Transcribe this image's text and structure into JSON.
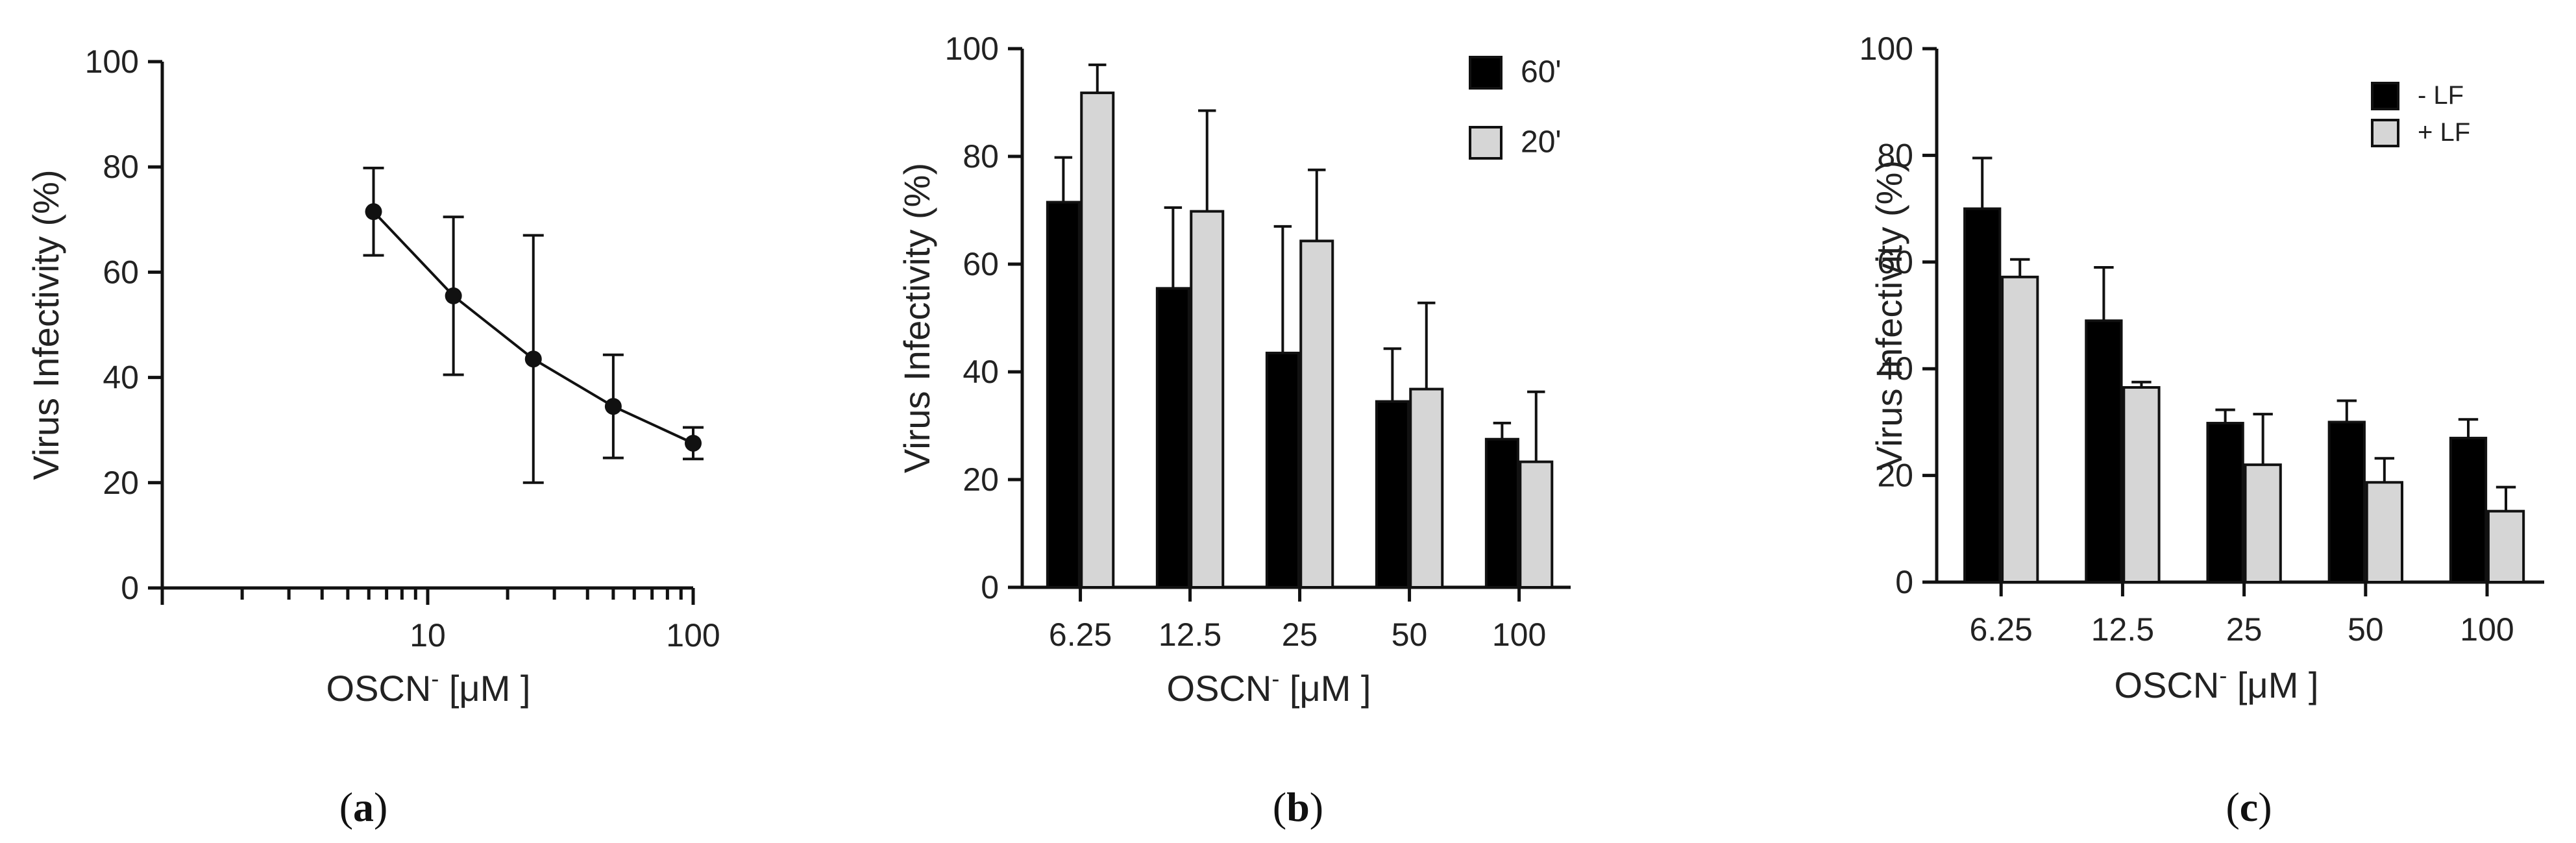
{
  "chart_data": [
    {
      "panel": "(a)",
      "panel_letter": "a",
      "type": "line",
      "xscale": "log",
      "x": [
        6.25,
        12.5,
        25,
        50,
        100
      ],
      "values": [
        71.5,
        55.5,
        43.5,
        34.5,
        27.5
      ],
      "errors": [
        8.3,
        15.0,
        23.5,
        9.8,
        3.0
      ],
      "ylabel": "Virus Infectivity (%)",
      "xlabel_main": "OSCN",
      "xlabel_sup": "-",
      "xlabel_unit": "[μM ]",
      "xlim": [
        1,
        100
      ],
      "ylim": [
        0,
        100
      ],
      "yticks": [
        "0",
        "20",
        "40",
        "60",
        "80",
        "100"
      ],
      "xticks": [
        "10",
        "100"
      ],
      "color": "#111111"
    },
    {
      "panel": "(b)",
      "panel_letter": "b",
      "type": "bar",
      "categories": [
        "6.25",
        "12.5",
        "25",
        "50",
        "100"
      ],
      "series": [
        {
          "name": "60'",
          "values": [
            71.5,
            55.5,
            43.5,
            34.5,
            27.5
          ],
          "errors": [
            8.3,
            15.0,
            23.5,
            9.8,
            3.0
          ],
          "color": "#000000"
        },
        {
          "name": "20'",
          "values": [
            91.8,
            69.8,
            64.3,
            36.8,
            23.3
          ],
          "errors": [
            5.2,
            18.7,
            13.2,
            16.0,
            13.0
          ],
          "color": "#d6d6d6"
        }
      ],
      "ylabel": "Virus Infectivity (%)",
      "xlabel_main": "OSCN",
      "xlabel_sup": "-",
      "xlabel_unit": "[μM ]",
      "ylim": [
        0,
        100
      ],
      "yticks": [
        "0",
        "20",
        "40",
        "60",
        "80",
        "100"
      ],
      "legend": "top-right"
    },
    {
      "panel": "(c)",
      "panel_letter": "c",
      "type": "bar",
      "categories": [
        "6.25",
        "12.5",
        "25",
        "50",
        "100"
      ],
      "series": [
        {
          "name": "-  LF",
          "values": [
            70.0,
            49.0,
            29.8,
            30.0,
            27.0
          ],
          "errors": [
            9.5,
            10.0,
            2.5,
            4.0,
            3.5
          ],
          "color": "#000000"
        },
        {
          "name": "+  LF",
          "values": [
            57.2,
            36.5,
            22.0,
            18.7,
            13.3
          ],
          "errors": [
            3.3,
            1.0,
            9.5,
            4.5,
            4.5
          ],
          "color": "#d6d6d6"
        }
      ],
      "ylabel": "Virus Infectivity (%)",
      "xlabel_main": "OSCN",
      "xlabel_sup": "-",
      "xlabel_unit": "[μM ]",
      "ylim": [
        0,
        100
      ],
      "yticks": [
        "0",
        "20",
        "40",
        "60",
        "80",
        "100"
      ],
      "legend": "top-right"
    }
  ]
}
